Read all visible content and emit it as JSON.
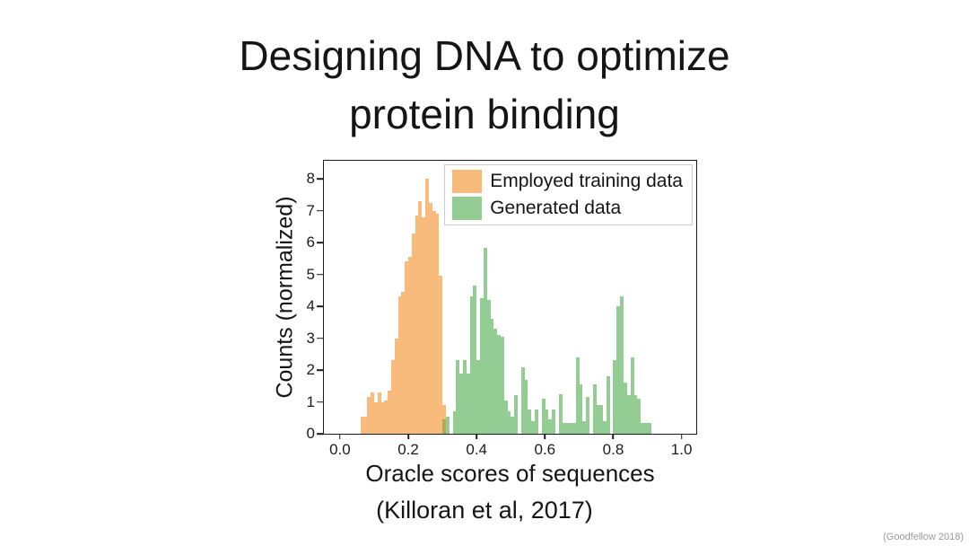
{
  "slide": {
    "title_line1": "Designing DNA to optimize",
    "title_line2": "protein binding",
    "citation": "(Killoran et al, 2017)",
    "credit": "(Goodfellow 2018)"
  },
  "colors": {
    "training_orange": "#f8bb7c",
    "generated_green": "#93cd93",
    "overlap_olive": "#b3a95c",
    "axis_black": "#1c1c1c",
    "legend_border": "#cccccc",
    "credit_gray": "#9a9a9a"
  },
  "chart_data": {
    "type": "bar",
    "subtype": "histogram",
    "title": "",
    "xlabel": "Oracle scores of sequences",
    "ylabel": "Counts (normalized)",
    "xlim": [
      -0.047,
      1.043
    ],
    "ylim": [
      0,
      8.57
    ],
    "grid": false,
    "legend_position": "upper right",
    "bin_width": 0.0105,
    "xticks": {
      "values": [
        0.0,
        0.2,
        0.4,
        0.6,
        0.8,
        1.0
      ],
      "labels": [
        "0.0",
        "0.2",
        "0.4",
        "0.6",
        "0.8",
        "1.0"
      ]
    },
    "yticks": {
      "values": [
        0,
        1,
        2,
        3,
        4,
        5,
        6,
        7,
        8
      ],
      "labels": [
        "0",
        "1",
        "2",
        "3",
        "4",
        "5",
        "6",
        "7",
        "8"
      ]
    },
    "series": [
      {
        "name": "Employed training data",
        "color": "#f8bb7c",
        "in_legend": true,
        "x_start": 0.06,
        "x_step": 0.01,
        "values": [
          0.55,
          0.55,
          1.15,
          1.3,
          1.0,
          1.3,
          1.0,
          1.05,
          1.35,
          2.3,
          3.0,
          4.3,
          4.45,
          5.4,
          5.55,
          6.3,
          6.85,
          7.3,
          6.8,
          8.0,
          7.25,
          7.0,
          6.9,
          4.95,
          0.9
        ]
      },
      {
        "name": "Generated data",
        "color": "#93cd93",
        "in_legend": true,
        "x_start": 0.3,
        "x_step": 0.01,
        "values": [
          0,
          0.55,
          0,
          0.7,
          2.3,
          1.9,
          2.3,
          1.9,
          4.3,
          4.65,
          2.3,
          4.25,
          5.85,
          4.2,
          3.6,
          3.3,
          3.1,
          3.05,
          1.05,
          0.7,
          0.55,
          1.2,
          0,
          2.1,
          1.7,
          0.75,
          0.4,
          0.75,
          0,
          1.1,
          0.75,
          0.45,
          0.75,
          0,
          1.25,
          0.35,
          0.35,
          0.35,
          0.35,
          2.4,
          1.55,
          0.4,
          1.15,
          0,
          1.55,
          0.9,
          0.9,
          0.4,
          1.8,
          0,
          2.3,
          4.0,
          4.3,
          1.6,
          1.2,
          2.4,
          1.2,
          1.1,
          0.35,
          0.35,
          0.35
        ]
      },
      {
        "name": "overlap",
        "color": "#b3a95c",
        "in_legend": false,
        "x_start": 0.3,
        "x_step": 0.01,
        "values": [
          0.45
        ]
      }
    ]
  }
}
